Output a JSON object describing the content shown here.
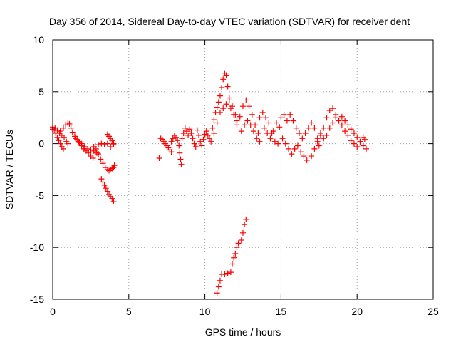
{
  "chart_data": {
    "type": "scatter",
    "title": "Day 356 of 2014, Sidereal Day-to-day VTEC variation (SDTVAR) for receiver dent",
    "xlabel": "GPS time / hours",
    "ylabel": "SDTVAR / TECUs",
    "xlim": [
      0,
      25
    ],
    "ylim": [
      -15,
      10
    ],
    "xticks": [
      0,
      5,
      10,
      15,
      20,
      25
    ],
    "yticks": [
      -15,
      -10,
      -5,
      0,
      5,
      10
    ],
    "grid": true,
    "marker": "+",
    "color": "#ff0000",
    "series": [
      {
        "name": "SDTVAR",
        "points": [
          [
            0.0,
            1.6
          ],
          [
            0.1,
            1.3
          ],
          [
            0.2,
            1.0
          ],
          [
            0.3,
            0.6
          ],
          [
            0.4,
            0.3
          ],
          [
            0.5,
            0.0
          ],
          [
            0.6,
            -0.3
          ],
          [
            0.7,
            -0.5
          ],
          [
            0.0,
            1.4
          ],
          [
            0.15,
            1.5
          ],
          [
            0.3,
            1.3
          ],
          [
            0.45,
            1.0
          ],
          [
            0.6,
            0.8
          ],
          [
            0.75,
            0.6
          ],
          [
            0.9,
            0.2
          ],
          [
            1.0,
            0.0
          ],
          [
            0.5,
            1.2
          ],
          [
            0.7,
            1.5
          ],
          [
            0.85,
            1.8
          ],
          [
            1.0,
            2.0
          ],
          [
            1.1,
            1.9
          ],
          [
            1.2,
            1.5
          ],
          [
            1.3,
            1.1
          ],
          [
            1.45,
            0.7
          ],
          [
            1.6,
            0.4
          ],
          [
            1.75,
            0.1
          ],
          [
            1.9,
            -0.2
          ],
          [
            2.05,
            -0.5
          ],
          [
            2.2,
            -0.7
          ],
          [
            2.35,
            -0.9
          ],
          [
            2.5,
            -1.2
          ],
          [
            2.65,
            -1.4
          ],
          [
            1.5,
            0.5
          ],
          [
            1.7,
            0.2
          ],
          [
            1.9,
            0.0
          ],
          [
            2.1,
            -0.3
          ],
          [
            2.3,
            -0.5
          ],
          [
            2.5,
            -0.6
          ],
          [
            2.7,
            -0.7
          ],
          [
            2.9,
            -0.9
          ],
          [
            2.7,
            -0.3
          ],
          [
            2.85,
            -0.5
          ],
          [
            3.0,
            -1.0
          ],
          [
            3.15,
            -1.5
          ],
          [
            3.3,
            -1.9
          ],
          [
            3.45,
            -2.3
          ],
          [
            3.6,
            -2.5
          ],
          [
            3.0,
            -0.1
          ],
          [
            3.2,
            0.0
          ],
          [
            3.4,
            -0.1
          ],
          [
            3.6,
            0.0
          ],
          [
            3.8,
            -0.3
          ],
          [
            4.0,
            -0.1
          ],
          [
            3.7,
            -2.6
          ],
          [
            3.8,
            -2.5
          ],
          [
            3.9,
            -2.4
          ],
          [
            4.0,
            -2.3
          ],
          [
            4.05,
            -2.1
          ],
          [
            3.6,
            0.9
          ],
          [
            3.7,
            0.7
          ],
          [
            3.8,
            0.5
          ],
          [
            3.9,
            0.3
          ],
          [
            4.0,
            0.0
          ],
          [
            3.2,
            -3.4
          ],
          [
            3.3,
            -3.7
          ],
          [
            3.4,
            -4.0
          ],
          [
            3.5,
            -4.3
          ],
          [
            3.6,
            -4.6
          ],
          [
            3.7,
            -4.9
          ],
          [
            3.8,
            -5.1
          ],
          [
            3.9,
            -5.3
          ],
          [
            4.0,
            -5.6
          ],
          [
            7.0,
            -1.4
          ],
          [
            7.1,
            0.5
          ],
          [
            7.2,
            0.4
          ],
          [
            7.3,
            0.2
          ],
          [
            7.4,
            0.0
          ],
          [
            7.5,
            -0.2
          ],
          [
            7.6,
            -0.4
          ],
          [
            7.7,
            -0.6
          ],
          [
            7.8,
            -0.8
          ],
          [
            7.8,
            0.2
          ],
          [
            7.9,
            0.5
          ],
          [
            8.0,
            0.8
          ],
          [
            8.1,
            0.6
          ],
          [
            8.2,
            0.3
          ],
          [
            8.3,
            -0.2
          ],
          [
            8.35,
            -0.9
          ],
          [
            8.4,
            -1.5
          ],
          [
            8.45,
            -2.0
          ],
          [
            8.5,
            0.5
          ],
          [
            8.6,
            1.0
          ],
          [
            8.7,
            1.5
          ],
          [
            8.8,
            1.2
          ],
          [
            8.9,
            0.8
          ],
          [
            9.0,
            1.4
          ],
          [
            9.1,
            1.0
          ],
          [
            9.2,
            0.5
          ],
          [
            9.3,
            0.0
          ],
          [
            9.4,
            -0.3
          ],
          [
            9.5,
            1.3
          ],
          [
            9.6,
            0.8
          ],
          [
            9.7,
            0.2
          ],
          [
            9.8,
            -0.2
          ],
          [
            9.9,
            0.4
          ],
          [
            10.0,
            0.9
          ],
          [
            10.1,
            1.2
          ],
          [
            10.2,
            0.8
          ],
          [
            10.3,
            0.5
          ],
          [
            10.4,
            0.2
          ],
          [
            10.5,
            1.5
          ],
          [
            10.6,
            2.3
          ],
          [
            10.7,
            3.0
          ],
          [
            10.8,
            3.5
          ],
          [
            10.9,
            4.0
          ],
          [
            11.0,
            4.6
          ],
          [
            11.1,
            5.4
          ],
          [
            11.2,
            6.2
          ],
          [
            11.3,
            6.8
          ],
          [
            11.4,
            6.6
          ],
          [
            11.5,
            5.5
          ],
          [
            11.6,
            4.4
          ],
          [
            10.6,
            1.0
          ],
          [
            10.8,
            2.0
          ],
          [
            11.0,
            3.0
          ],
          [
            11.2,
            3.4
          ],
          [
            11.4,
            3.8
          ],
          [
            11.6,
            4.2
          ],
          [
            11.8,
            3.6
          ],
          [
            12.0,
            2.8
          ],
          [
            12.1,
            1.8
          ],
          [
            11.7,
            3.4
          ],
          [
            11.9,
            2.8
          ],
          [
            12.1,
            2.2
          ],
          [
            12.3,
            2.6
          ],
          [
            12.5,
            3.6
          ],
          [
            12.7,
            4.2
          ],
          [
            12.9,
            3.6
          ],
          [
            13.1,
            2.8
          ],
          [
            13.3,
            1.8
          ],
          [
            13.5,
            1.0
          ],
          [
            12.4,
            1.2
          ],
          [
            12.6,
            1.8
          ],
          [
            12.8,
            2.2
          ],
          [
            13.0,
            1.8
          ],
          [
            13.2,
            1.2
          ],
          [
            13.4,
            0.5
          ],
          [
            13.6,
            0.2
          ],
          [
            13.6,
            2.5
          ],
          [
            13.8,
            3.0
          ],
          [
            14.0,
            2.5
          ],
          [
            14.2,
            2.0
          ],
          [
            14.4,
            1.0
          ],
          [
            14.6,
            0.2
          ],
          [
            14.8,
            0.0
          ],
          [
            13.9,
            1.5
          ],
          [
            14.1,
            1.0
          ],
          [
            14.3,
            0.5
          ],
          [
            14.5,
            1.2
          ],
          [
            14.7,
            2.0
          ],
          [
            14.9,
            1.6
          ],
          [
            15.0,
            2.5
          ],
          [
            15.2,
            2.8
          ],
          [
            15.4,
            2.2
          ],
          [
            15.6,
            2.8
          ],
          [
            15.8,
            2.2
          ],
          [
            16.0,
            1.5
          ],
          [
            16.2,
            1.0
          ],
          [
            15.1,
            0.5
          ],
          [
            15.3,
            0.0
          ],
          [
            15.5,
            -0.5
          ],
          [
            15.7,
            -1.0
          ],
          [
            15.9,
            -0.5
          ],
          [
            16.1,
            -0.2
          ],
          [
            16.3,
            -0.8
          ],
          [
            16.5,
            -1.2
          ],
          [
            16.7,
            -1.6
          ],
          [
            16.4,
            0.5
          ],
          [
            16.6,
            1.0
          ],
          [
            16.8,
            1.5
          ],
          [
            17.0,
            2.0
          ],
          [
            17.2,
            1.5
          ],
          [
            17.4,
            0.5
          ],
          [
            17.5,
            -0.2
          ],
          [
            17.0,
            -1.2
          ],
          [
            17.2,
            -0.5
          ],
          [
            17.4,
            0.2
          ],
          [
            17.6,
            0.8
          ],
          [
            17.8,
            1.5
          ],
          [
            18.0,
            2.5
          ],
          [
            18.2,
            3.2
          ],
          [
            18.4,
            3.4
          ],
          [
            18.6,
            2.8
          ],
          [
            17.6,
            1.0
          ],
          [
            17.8,
            0.5
          ],
          [
            18.0,
            0.8
          ],
          [
            18.2,
            1.5
          ],
          [
            18.4,
            2.0
          ],
          [
            18.6,
            2.5
          ],
          [
            18.8,
            2.2
          ],
          [
            19.0,
            1.8
          ],
          [
            19.2,
            1.2
          ],
          [
            19.0,
            2.6
          ],
          [
            19.2,
            2.2
          ],
          [
            19.4,
            1.8
          ],
          [
            19.6,
            1.4
          ],
          [
            19.8,
            1.0
          ],
          [
            20.0,
            0.6
          ],
          [
            20.2,
            0.2
          ],
          [
            20.4,
            -0.2
          ],
          [
            20.6,
            -0.5
          ],
          [
            19.4,
            0.8
          ],
          [
            19.6,
            0.3
          ],
          [
            19.8,
            0.0
          ],
          [
            20.0,
            -0.3
          ],
          [
            20.2,
            0.2
          ],
          [
            20.4,
            0.6
          ],
          [
            20.5,
            0.4
          ],
          [
            10.8,
            -14.4
          ],
          [
            10.9,
            -13.8
          ],
          [
            11.0,
            -13.2
          ],
          [
            11.1,
            -12.6
          ],
          [
            11.3,
            -12.6
          ],
          [
            11.5,
            -12.5
          ],
          [
            11.7,
            -12.4
          ],
          [
            11.8,
            -11.6
          ],
          [
            11.9,
            -11.0
          ],
          [
            12.0,
            -10.6
          ],
          [
            12.1,
            -10.0
          ],
          [
            12.2,
            -9.6
          ],
          [
            12.4,
            -9.3
          ],
          [
            12.5,
            -8.6
          ],
          [
            12.6,
            -7.8
          ],
          [
            12.7,
            -7.3
          ]
        ]
      }
    ]
  }
}
